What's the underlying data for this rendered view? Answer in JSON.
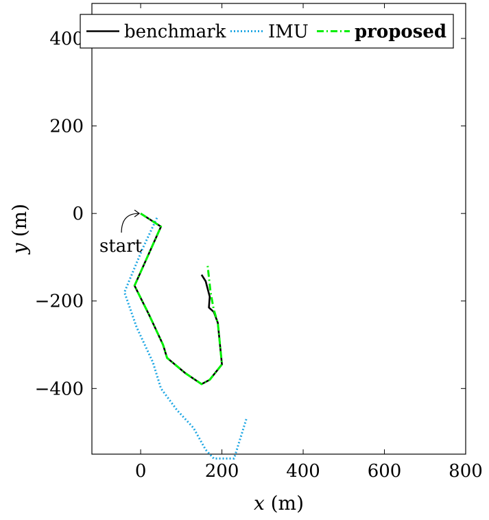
{
  "chart_data": {
    "type": "line",
    "xlabel_var": "x",
    "xlabel_unit": " (m)",
    "ylabel_var": "y",
    "ylabel_unit": " (m)",
    "xlim": [
      -120,
      800
    ],
    "ylim": [
      -550,
      480
    ],
    "xticks": [
      0,
      200,
      400,
      600,
      800
    ],
    "yticks": [
      400,
      200,
      0,
      -200,
      -400
    ],
    "xtick_labels": [
      "0",
      "200",
      "400",
      "600",
      "800"
    ],
    "ytick_labels": [
      "400",
      "200",
      "0",
      "−200",
      "−400"
    ],
    "grid": false,
    "legend_position": "top",
    "annotation": {
      "text": "start",
      "target": [
        0,
        0
      ]
    },
    "series": [
      {
        "name": "benchmark",
        "color": "#000000",
        "style": "solid",
        "bold": false,
        "points": [
          [
            0,
            0
          ],
          [
            50,
            -30
          ],
          [
            -15,
            -165
          ],
          [
            20,
            -230
          ],
          [
            55,
            -300
          ],
          [
            65,
            -330
          ],
          [
            110,
            -365
          ],
          [
            150,
            -390
          ],
          [
            170,
            -380
          ],
          [
            200,
            -345
          ],
          [
            190,
            -250
          ],
          [
            180,
            -225
          ],
          [
            168,
            -215
          ],
          [
            170,
            -190
          ],
          [
            160,
            -155
          ],
          [
            150,
            -140
          ]
        ]
      },
      {
        "name": "IMU",
        "color": "#1ca6e3",
        "style": "dotted",
        "bold": false,
        "points": [
          [
            40,
            -10
          ],
          [
            5,
            -80
          ],
          [
            -40,
            -180
          ],
          [
            -10,
            -260
          ],
          [
            30,
            -340
          ],
          [
            50,
            -400
          ],
          [
            90,
            -450
          ],
          [
            130,
            -490
          ],
          [
            160,
            -540
          ],
          [
            180,
            -560
          ],
          [
            230,
            -560
          ],
          [
            250,
            -500
          ],
          [
            260,
            -470
          ]
        ]
      },
      {
        "name": "proposed",
        "color": "#00ee00",
        "style": "dashdot",
        "bold": true,
        "points": [
          [
            0,
            0
          ],
          [
            50,
            -30
          ],
          [
            -15,
            -165
          ],
          [
            20,
            -230
          ],
          [
            55,
            -300
          ],
          [
            65,
            -330
          ],
          [
            110,
            -365
          ],
          [
            150,
            -390
          ],
          [
            170,
            -380
          ],
          [
            200,
            -345
          ],
          [
            190,
            -250
          ],
          [
            180,
            -220
          ],
          [
            172,
            -180
          ],
          [
            165,
            -120
          ]
        ]
      }
    ]
  }
}
